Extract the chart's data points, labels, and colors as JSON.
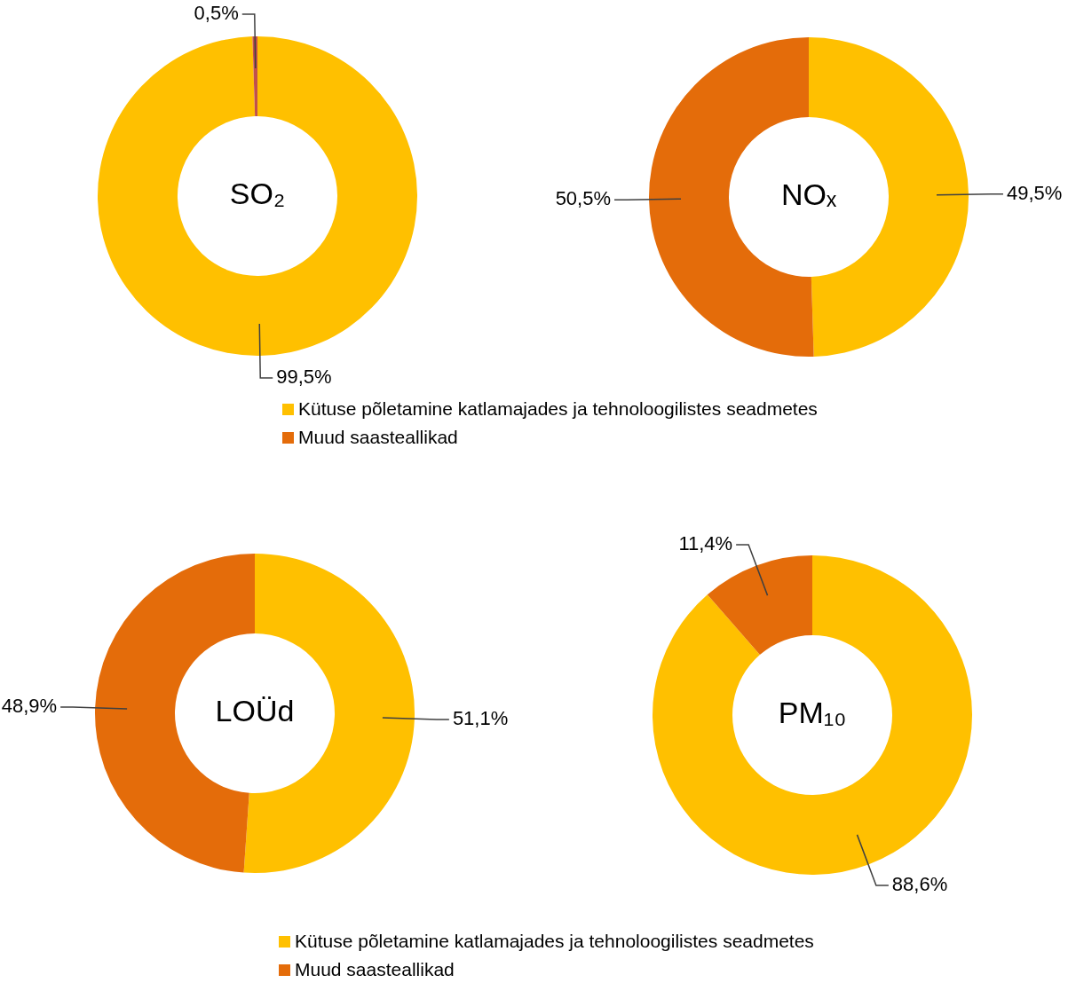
{
  "chart_data": [
    {
      "type": "donut",
      "title": "SO₂",
      "categories": [
        null,
        null
      ],
      "values": [
        99.5,
        0.5
      ],
      "colors": [
        "#ffc000",
        "#c0504d"
      ],
      "value_labels": [
        "99,5%",
        "0,5%"
      ]
    },
    {
      "type": "donut",
      "title": "NOₓ",
      "categories": [
        "Kütuse põletamine katlamajades ja tehnoloogilistes seadmetes",
        "Muud saasteallikad"
      ],
      "values": [
        49.5,
        50.5
      ],
      "colors": [
        "#ffc000",
        "#e46c0a"
      ],
      "value_labels": [
        "49,5%",
        "50,5%"
      ],
      "legend": "bottom"
    },
    {
      "type": "donut",
      "title": "LOÜd",
      "categories": [
        null,
        null
      ],
      "values": [
        51.1,
        48.9
      ],
      "colors": [
        "#ffc000",
        "#e46c0a"
      ],
      "value_labels": [
        "51,1%",
        "48,9%"
      ]
    },
    {
      "type": "donut",
      "title": "PM₁₀",
      "categories": [
        "Kütuse põletamine katlamajades ja tehnoloogilistes seadmetes",
        "Muud saasteallikad"
      ],
      "values": [
        88.6,
        11.4
      ],
      "colors": [
        "#ffc000",
        "#e46c0a"
      ],
      "value_labels": [
        "88,6%",
        "11,4%"
      ],
      "legend": "bottom"
    }
  ]
}
